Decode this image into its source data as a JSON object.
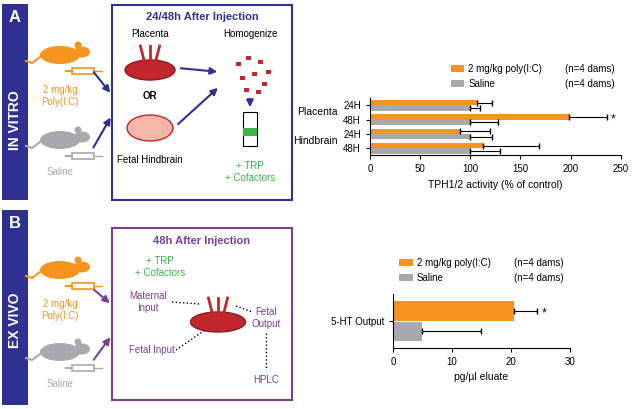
{
  "chart_data": [
    {
      "type": "bar",
      "orientation": "horizontal",
      "groups": [
        {
          "label": "Placenta",
          "categories": [
            "24H",
            "48H"
          ]
        },
        {
          "label": "Hindbrain",
          "categories": [
            "24H",
            "48H"
          ]
        }
      ],
      "xlabel": "TPH1/2 activity (% of control)",
      "xlim": [
        0,
        250
      ],
      "xticks": [
        0,
        50,
        100,
        150,
        200,
        250
      ],
      "legend": "upper right",
      "series": [
        {
          "name": "2 mg/kg poly(I:C)",
          "n": "(n=4 dams)",
          "color": "#f7941d",
          "values": [
            107,
            198,
            90,
            113
          ],
          "errors": [
            15,
            38,
            30,
            55
          ],
          "significance": [
            null,
            "*",
            null,
            null
          ]
        },
        {
          "name": "Saline",
          "n": "(n=4 dams)",
          "color": "#a7a9ac",
          "values": [
            100,
            100,
            100,
            100
          ],
          "errors": [
            10,
            28,
            22,
            30
          ],
          "significance": [
            null,
            null,
            null,
            null
          ]
        }
      ]
    },
    {
      "type": "bar",
      "orientation": "horizontal",
      "categories": [
        "5-HT Output"
      ],
      "xlabel": "pg/µl eluate",
      "xlim": [
        0,
        30
      ],
      "xticks": [
        0,
        10,
        20,
        30
      ],
      "legend": "upper right",
      "series": [
        {
          "name": "2 mg/kg poly(I:C)",
          "n": "(n=4 dams)",
          "color": "#f7941d",
          "values": [
            20.5
          ],
          "errors": [
            4
          ],
          "significance": [
            "*"
          ]
        },
        {
          "name": "Saline",
          "n": "(n=4 dams)",
          "color": "#a7a9ac",
          "values": [
            5
          ],
          "errors": [
            10
          ],
          "significance": [
            null
          ]
        }
      ]
    }
  ],
  "diagram": {
    "panels": [
      {
        "label": "A",
        "method": "IN VITRO",
        "title": "24/48h After Injection",
        "treatment": "2 mg/kg\nPoly(I:C)",
        "control": "Saline",
        "tissue_1": "Placenta",
        "or": "OR",
        "tissue_2": "Fetal Hindbrain",
        "step": "Homogenize",
        "reagents": "+ TRP\n+ Cofactors"
      },
      {
        "label": "B",
        "method": "EX VIVO",
        "title": "48h After Injection",
        "treatment": "2 mg/kg\nPoly(I:C)",
        "control": "Saline",
        "reagents": "+ TRP\n+ Cofactors",
        "maternal_input": "Maternal\nInput",
        "fetal_input": "Fetal Input",
        "fetal_output": "Fetal\nOutput",
        "detection": "HPLC"
      }
    ]
  }
}
